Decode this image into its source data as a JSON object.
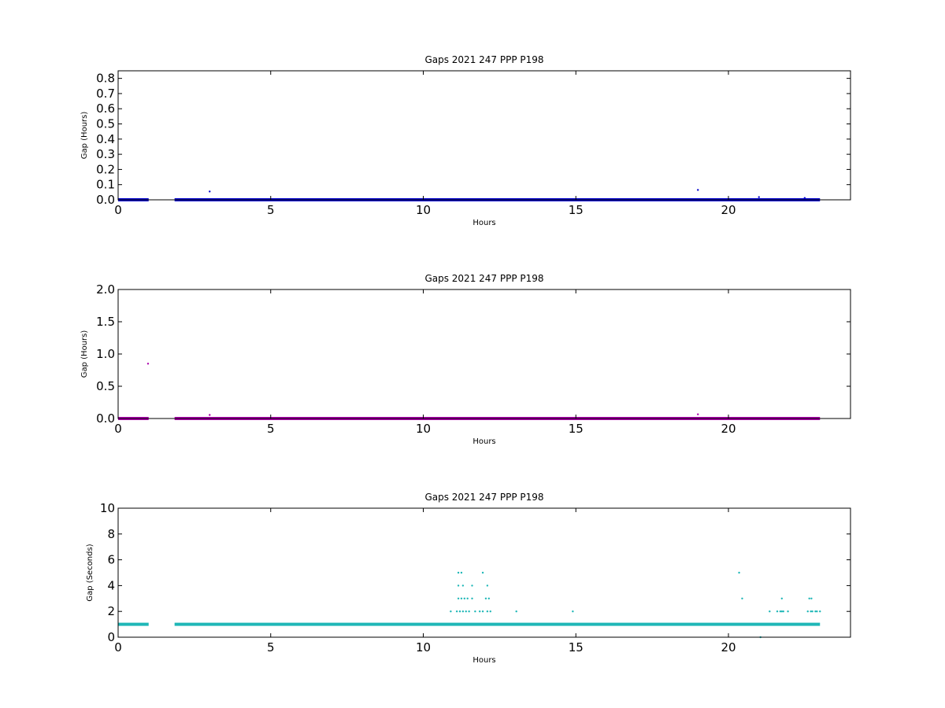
{
  "colors": {
    "panel1": "#0000cc",
    "panel2": "#aa00aa",
    "panel3": "#1fb7b7",
    "axes": "#000000",
    "background": "#ffffff"
  },
  "chart_data": [
    {
      "type": "scatter",
      "title": "Gaps 2021 247 PPP  P198",
      "xlabel": "Hours",
      "ylabel": "Gap (Hours)",
      "xlim": [
        0,
        24
      ],
      "ylim": [
        0,
        0.85
      ],
      "xticks": [
        0,
        5,
        10,
        15,
        20
      ],
      "yticks": [
        0.0,
        0.1,
        0.2,
        0.3,
        0.4,
        0.5,
        0.6,
        0.7,
        0.8
      ],
      "ytick_labels": [
        "0.0",
        "0.1",
        "0.2",
        "0.3",
        "0.4",
        "0.5",
        "0.6",
        "0.7",
        "0.8"
      ],
      "xtick_labels": [
        "0",
        "5",
        "10",
        "15",
        "20"
      ],
      "baseline": {
        "y": 0.0003,
        "segments": [
          [
            0,
            1.0
          ],
          [
            1.85,
            23.0
          ]
        ]
      },
      "points": [
        {
          "x": 3.0,
          "y": 0.055
        },
        {
          "x": 19.0,
          "y": 0.065
        },
        {
          "x": 21.0,
          "y": 0.018
        },
        {
          "x": 22.5,
          "y": 0.012
        }
      ]
    },
    {
      "type": "scatter",
      "title": "Gaps 2021 247 PPP  P198",
      "xlabel": "Hours",
      "ylabel": "Gap (Hours)",
      "xlim": [
        0,
        24
      ],
      "ylim": [
        0,
        2.0
      ],
      "xticks": [
        0,
        5,
        10,
        15,
        20
      ],
      "yticks": [
        0.0,
        0.5,
        1.0,
        1.5,
        2.0
      ],
      "ytick_labels": [
        "0.0",
        "0.5",
        "1.0",
        "1.5",
        "2.0"
      ],
      "xtick_labels": [
        "0",
        "5",
        "10",
        "15",
        "20"
      ],
      "baseline": {
        "y": 0.0003,
        "segments": [
          [
            0,
            1.0
          ],
          [
            1.85,
            23.0
          ]
        ]
      },
      "points": [
        {
          "x": 0.98,
          "y": 0.85
        },
        {
          "x": 3.0,
          "y": 0.055
        },
        {
          "x": 19.0,
          "y": 0.065
        }
      ]
    },
    {
      "type": "scatter",
      "title": "Gaps 2021 247 PPP  P198",
      "xlabel": "Hours",
      "ylabel": "Gap (Seconds)",
      "xlim": [
        0,
        24
      ],
      "ylim": [
        0,
        10
      ],
      "xticks": [
        0,
        5,
        10,
        15,
        20
      ],
      "yticks": [
        0,
        2,
        4,
        6,
        8,
        10
      ],
      "ytick_labels": [
        "0",
        "2",
        "4",
        "6",
        "8",
        "10"
      ],
      "xtick_labels": [
        "0",
        "5",
        "10",
        "15",
        "20"
      ],
      "baseline": {
        "y": 1,
        "segments": [
          [
            0,
            1.0
          ],
          [
            1.85,
            23.0
          ]
        ]
      },
      "points": [
        {
          "x": 10.9,
          "y": 2
        },
        {
          "x": 11.1,
          "y": 2
        },
        {
          "x": 11.2,
          "y": 2
        },
        {
          "x": 11.3,
          "y": 2
        },
        {
          "x": 11.4,
          "y": 2
        },
        {
          "x": 11.5,
          "y": 2
        },
        {
          "x": 11.7,
          "y": 2
        },
        {
          "x": 11.85,
          "y": 2
        },
        {
          "x": 11.95,
          "y": 2
        },
        {
          "x": 12.1,
          "y": 2
        },
        {
          "x": 12.2,
          "y": 2
        },
        {
          "x": 13.05,
          "y": 2
        },
        {
          "x": 14.9,
          "y": 2
        },
        {
          "x": 11.15,
          "y": 3
        },
        {
          "x": 11.25,
          "y": 3
        },
        {
          "x": 11.35,
          "y": 3
        },
        {
          "x": 11.45,
          "y": 3
        },
        {
          "x": 11.6,
          "y": 3
        },
        {
          "x": 12.05,
          "y": 3
        },
        {
          "x": 12.15,
          "y": 3
        },
        {
          "x": 11.15,
          "y": 4
        },
        {
          "x": 11.3,
          "y": 4
        },
        {
          "x": 11.6,
          "y": 4
        },
        {
          "x": 12.1,
          "y": 4
        },
        {
          "x": 11.15,
          "y": 5
        },
        {
          "x": 11.25,
          "y": 5
        },
        {
          "x": 11.95,
          "y": 5
        },
        {
          "x": 20.35,
          "y": 5
        },
        {
          "x": 20.45,
          "y": 3
        },
        {
          "x": 21.05,
          "y": 0
        },
        {
          "x": 21.35,
          "y": 2
        },
        {
          "x": 21.6,
          "y": 2
        },
        {
          "x": 21.7,
          "y": 2
        },
        {
          "x": 21.75,
          "y": 2
        },
        {
          "x": 21.8,
          "y": 2
        },
        {
          "x": 21.95,
          "y": 2
        },
        {
          "x": 21.75,
          "y": 3
        },
        {
          "x": 22.6,
          "y": 2
        },
        {
          "x": 22.7,
          "y": 2
        },
        {
          "x": 22.75,
          "y": 2
        },
        {
          "x": 22.85,
          "y": 2
        },
        {
          "x": 22.9,
          "y": 2
        },
        {
          "x": 23.0,
          "y": 2
        },
        {
          "x": 22.65,
          "y": 3
        },
        {
          "x": 22.72,
          "y": 3
        }
      ]
    }
  ]
}
